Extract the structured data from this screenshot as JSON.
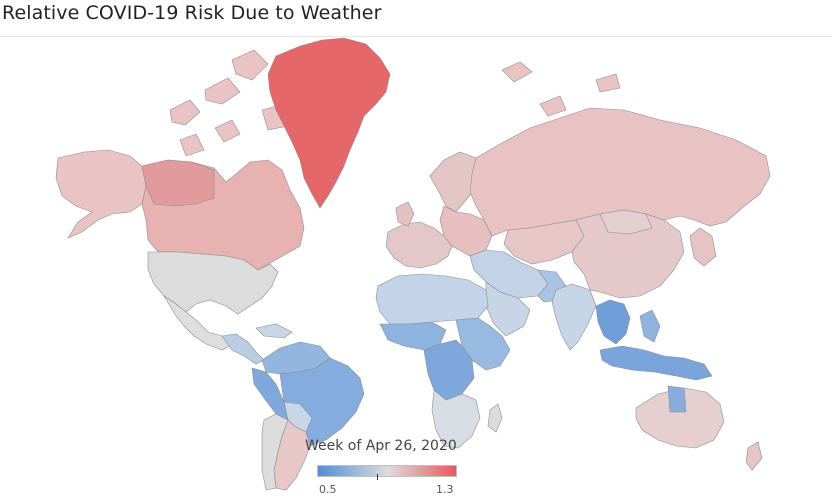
{
  "title": "Relative COVID-19 Risk Due to Weather",
  "legend": {
    "title": "Week of Apr 26, 2020",
    "min": "0.5",
    "max": "1.3",
    "color_low": "#4f8fd8",
    "color_mid": "#dcdcdc",
    "color_high": "#e8555a"
  },
  "regions": [
    {
      "name": "Greenland",
      "level": "high"
    },
    {
      "name": "Canada",
      "level": "medium-high"
    },
    {
      "name": "Alaska",
      "level": "medium-high"
    },
    {
      "name": "United States",
      "level": "neutral"
    },
    {
      "name": "Mexico",
      "level": "neutral"
    },
    {
      "name": "Central America",
      "level": "low"
    },
    {
      "name": "Brazil",
      "level": "low"
    },
    {
      "name": "Peru",
      "level": "low"
    },
    {
      "name": "Argentina",
      "level": "neutral-high"
    },
    {
      "name": "Chile",
      "level": "neutral"
    },
    {
      "name": "Europe",
      "level": "neutral-high"
    },
    {
      "name": "Russia",
      "level": "medium-high"
    },
    {
      "name": "North Africa",
      "level": "low-medium"
    },
    {
      "name": "Central Africa",
      "level": "low"
    },
    {
      "name": "Southern Africa",
      "level": "neutral"
    },
    {
      "name": "Middle East",
      "level": "low-medium"
    },
    {
      "name": "India",
      "level": "low-medium"
    },
    {
      "name": "China",
      "level": "neutral-high"
    },
    {
      "name": "Southeast Asia",
      "level": "low"
    },
    {
      "name": "Indonesia",
      "level": "low"
    },
    {
      "name": "Australia",
      "level": "neutral-high"
    }
  ]
}
